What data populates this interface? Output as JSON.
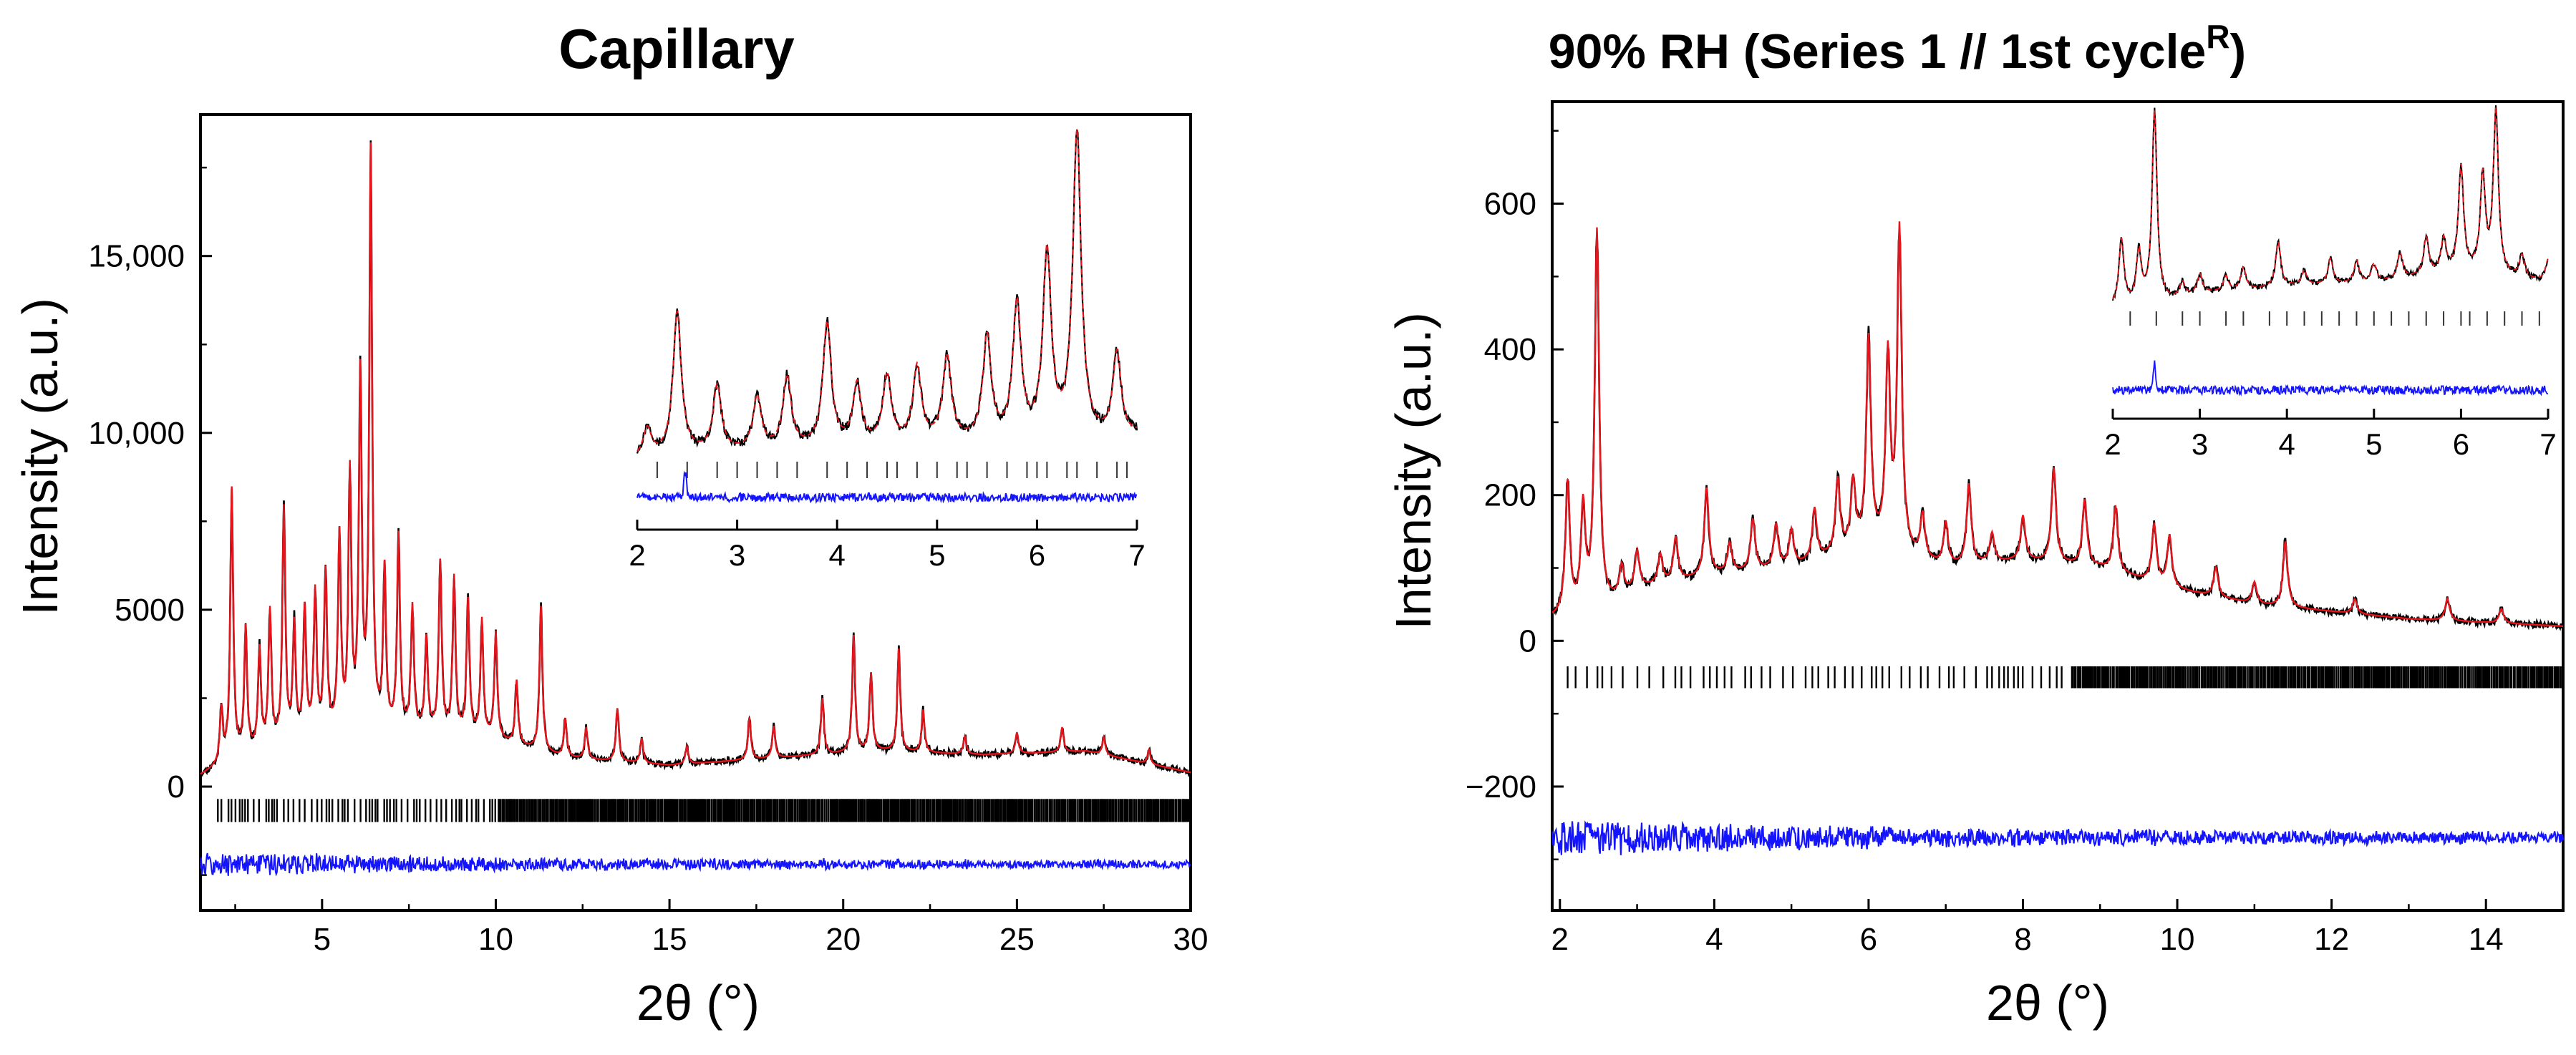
{
  "chart_data": [
    {
      "type": "line",
      "id": "capillary",
      "title": "Capillary",
      "xlabel": "2θ (°)",
      "ylabel": "Intensity (a.u.)",
      "xlim": [
        1.5,
        30
      ],
      "ylim": [
        -3500,
        19000
      ],
      "xticks": [
        5,
        10,
        15,
        20,
        25,
        30
      ],
      "xtick_labels": [
        "5",
        "10",
        "15",
        "20",
        "25",
        "30"
      ],
      "yticks": [
        0,
        5000,
        10000,
        15000
      ],
      "ytick_labels": [
        "0",
        "5000",
        "10,000",
        "15,000"
      ],
      "colors": {
        "observed": "#000000",
        "calculated": "#e8141b",
        "difference": "#1414ff",
        "reflections": "#000000"
      },
      "series": [
        {
          "name": "observed",
          "color": "#000000"
        },
        {
          "name": "calculated",
          "color": "#e8141b"
        },
        {
          "name": "difference",
          "color": "#1414ff",
          "offset": -2200
        },
        {
          "name": "reflections",
          "color": "#000000",
          "y_range": [
            -1000,
            -350
          ]
        }
      ],
      "background": [
        [
          1.5,
          300
        ],
        [
          2.5,
          800
        ],
        [
          5,
          1400
        ],
        [
          8,
          1500
        ],
        [
          10,
          1300
        ],
        [
          12,
          800
        ],
        [
          15,
          600
        ],
        [
          18,
          800
        ],
        [
          21,
          1000
        ],
        [
          24,
          900
        ],
        [
          27,
          1000
        ],
        [
          30,
          400
        ]
      ],
      "peaks": [
        [
          2.1,
          1500
        ],
        [
          2.4,
          7600
        ],
        [
          2.8,
          3500
        ],
        [
          3.2,
          2800
        ],
        [
          3.5,
          3800
        ],
        [
          3.9,
          6600
        ],
        [
          4.2,
          3200
        ],
        [
          4.5,
          3600
        ],
        [
          4.8,
          4000
        ],
        [
          5.1,
          4500
        ],
        [
          5.5,
          5500
        ],
        [
          5.8,
          7200
        ],
        [
          6.1,
          9900
        ],
        [
          6.4,
          16300
        ],
        [
          6.8,
          4500
        ],
        [
          7.2,
          5500
        ],
        [
          7.6,
          3500
        ],
        [
          8.0,
          2600
        ],
        [
          8.4,
          4800
        ],
        [
          8.8,
          4400
        ],
        [
          9.2,
          3800
        ],
        [
          9.6,
          3300
        ],
        [
          10.0,
          3000
        ],
        [
          10.6,
          1800
        ],
        [
          11.3,
          4100
        ],
        [
          12.0,
          1100
        ],
        [
          12.6,
          900
        ],
        [
          13.5,
          1500
        ],
        [
          14.2,
          700
        ],
        [
          15.5,
          500
        ],
        [
          17.3,
          1200
        ],
        [
          18.0,
          900
        ],
        [
          19.4,
          1600
        ],
        [
          20.3,
          3300
        ],
        [
          20.8,
          2200
        ],
        [
          21.6,
          2900
        ],
        [
          22.3,
          1200
        ],
        [
          23.5,
          500
        ],
        [
          25.0,
          600
        ],
        [
          26.3,
          700
        ],
        [
          27.5,
          500
        ],
        [
          28.8,
          400
        ]
      ],
      "reflection_start": 2.0,
      "reflection_dense_from": 10.0,
      "inset": {
        "xlim": [
          2,
          7
        ],
        "xticks": [
          2,
          3,
          4,
          5,
          6,
          7
        ],
        "xtick_labels": [
          "2",
          "3",
          "4",
          "5",
          "6",
          "7"
        ],
        "reflections": [
          2.2,
          2.5,
          2.8,
          3.0,
          3.2,
          3.4,
          3.6,
          3.9,
          4.1,
          4.3,
          4.5,
          4.6,
          4.8,
          5.0,
          5.2,
          5.3,
          5.5,
          5.7,
          5.9,
          6.0,
          6.1,
          6.3,
          6.4,
          6.6,
          6.8,
          6.9
        ]
      }
    },
    {
      "type": "line",
      "id": "rh90",
      "title": "90% RH (Series 1 // 1st cycle",
      "title_sup": "R",
      "title_end": ")",
      "xlabel": "2θ (°)",
      "ylabel": "Intensity (a.u.)",
      "xlim": [
        1.9,
        15
      ],
      "ylim": [
        -370,
        740
      ],
      "xticks": [
        2,
        4,
        6,
        8,
        10,
        12,
        14
      ],
      "xtick_labels": [
        "2",
        "4",
        "6",
        "8",
        "10",
        "12",
        "14"
      ],
      "yticks": [
        -200,
        0,
        200,
        400,
        600
      ],
      "ytick_labels": [
        "−200",
        "0",
        "200",
        "400",
        "600"
      ],
      "colors": {
        "observed": "#000000",
        "calculated": "#e8141b",
        "difference": "#1414ff",
        "reflections": "#000000"
      },
      "series": [
        {
          "name": "observed",
          "color": "#000000"
        },
        {
          "name": "calculated",
          "color": "#e8141b"
        },
        {
          "name": "difference",
          "color": "#1414ff",
          "offset": -270
        },
        {
          "name": "reflections",
          "color": "#000000",
          "y_range": [
            -65,
            -35
          ]
        }
      ],
      "background": [
        [
          1.9,
          30
        ],
        [
          2.5,
          40
        ],
        [
          3.0,
          70
        ],
        [
          4.0,
          90
        ],
        [
          5.0,
          100
        ],
        [
          6.0,
          130
        ],
        [
          7.0,
          100
        ],
        [
          8.0,
          110
        ],
        [
          9.0,
          100
        ],
        [
          10.0,
          70
        ],
        [
          11.0,
          50
        ],
        [
          12.0,
          40
        ],
        [
          13.0,
          30
        ],
        [
          14.0,
          25
        ],
        [
          15.0,
          20
        ]
      ],
      "peaks": [
        [
          2.1,
          180
        ],
        [
          2.3,
          140
        ],
        [
          2.48,
          520
        ],
        [
          2.8,
          40
        ],
        [
          3.0,
          50
        ],
        [
          3.3,
          40
        ],
        [
          3.5,
          60
        ],
        [
          3.9,
          120
        ],
        [
          4.2,
          40
        ],
        [
          4.5,
          70
        ],
        [
          4.8,
          60
        ],
        [
          5.0,
          50
        ],
        [
          5.3,
          70
        ],
        [
          5.6,
          100
        ],
        [
          5.8,
          90
        ],
        [
          6.0,
          280
        ],
        [
          6.25,
          260
        ],
        [
          6.4,
          440
        ],
        [
          6.7,
          60
        ],
        [
          7.0,
          60
        ],
        [
          7.3,
          110
        ],
        [
          7.6,
          40
        ],
        [
          8.0,
          60
        ],
        [
          8.4,
          130
        ],
        [
          8.8,
          90
        ],
        [
          9.2,
          90
        ],
        [
          9.7,
          80
        ],
        [
          9.9,
          70
        ],
        [
          10.5,
          40
        ],
        [
          11.0,
          30
        ],
        [
          11.4,
          90
        ],
        [
          12.3,
          20
        ],
        [
          13.5,
          30
        ],
        [
          14.2,
          20
        ]
      ],
      "reflection_start": 2.1,
      "reflection_dense_from": 8.6,
      "inset": {
        "xlim": [
          2,
          7
        ],
        "xticks": [
          2,
          3,
          4,
          5,
          6,
          7
        ],
        "xtick_labels": [
          "2",
          "3",
          "4",
          "5",
          "6",
          "7"
        ],
        "reflections": [
          2.2,
          2.5,
          2.8,
          3.0,
          3.3,
          3.5,
          3.8,
          4.0,
          4.2,
          4.4,
          4.6,
          4.8,
          5.0,
          5.2,
          5.4,
          5.6,
          5.8,
          6.0,
          6.1,
          6.3,
          6.5,
          6.7,
          6.9
        ]
      }
    }
  ]
}
